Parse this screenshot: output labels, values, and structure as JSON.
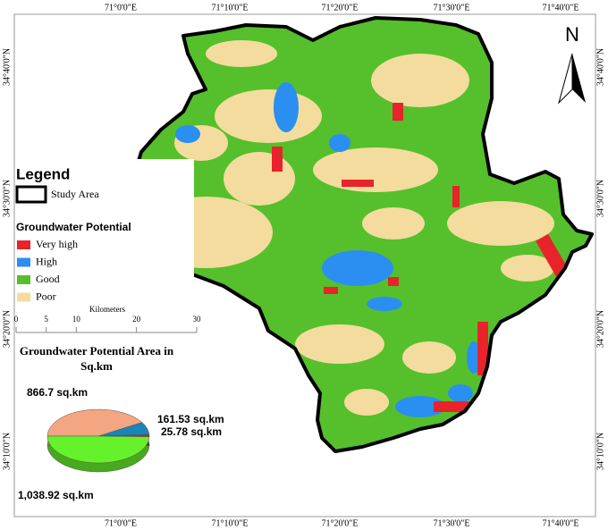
{
  "map": {
    "north": "N",
    "top_labels": [
      "71°0'0\"E",
      "71°10'0\"E",
      "71°20'0\"E",
      "71°30'0\"E",
      "71°40'0\"E"
    ],
    "bottom_labels": [
      "71°0'0\"E",
      "71°10'0\"E",
      "71°20'0\"E",
      "71°30'0\"E",
      "71°40'0\"E"
    ],
    "left_labels": [
      "34°40'0\"N",
      "34°30'0\"N",
      "34°20'0\"N",
      "34°10'0\"N"
    ],
    "right_labels": [
      "34°40'0\"N",
      "34°30'0\"N",
      "34°20'0\"N",
      "34°10'0\"N"
    ],
    "legend": {
      "title": "Legend",
      "study_area": "Study Area",
      "subtitle": "Groundwater Potential",
      "items": [
        {
          "label": "Very high",
          "color": "#e8232a"
        },
        {
          "label": "High",
          "color": "#2a8ff0"
        },
        {
          "label": "Good",
          "color": "#55c02c"
        },
        {
          "label": "Poor",
          "color": "#f3dc9e"
        }
      ]
    },
    "scale_bar": {
      "label": "Kilometers",
      "range": [
        0,
        30
      ],
      "ticks": [
        0,
        5,
        10,
        20,
        30
      ]
    }
  },
  "chart_data": {
    "type": "pie",
    "title": "Groundwater Potential Area in Sq.km",
    "values": [
      866.7,
      161.53,
      25.78,
      1038.92
    ],
    "value_labels": [
      "866.7 sq.km",
      "161.53 sq.km",
      "25.78 sq.km",
      "1,038.92 sq.km"
    ],
    "colors": [
      "#f4a582",
      "#1a85b8",
      "#c8202a",
      "#66f22a"
    ]
  }
}
